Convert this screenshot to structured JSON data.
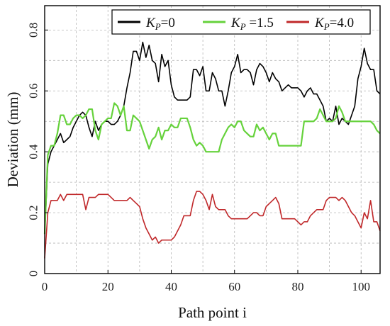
{
  "chart_data": {
    "type": "line",
    "title": "",
    "xlabel": "Path point i",
    "ylabel": "Deviation  (mm)",
    "xlim": [
      0,
      106
    ],
    "ylim": [
      0,
      0.88
    ],
    "xticks": [
      0,
      20,
      40,
      60,
      80,
      100
    ],
    "yticks": [
      0,
      0.2,
      0.4,
      0.6,
      0.8
    ],
    "xtick_labels": [
      "0",
      "20",
      "40",
      "60",
      "80",
      "100"
    ],
    "ytick_labels": [
      "0",
      "0.2",
      "0.4",
      "0.6",
      "0.8"
    ],
    "grid": true,
    "legend": {
      "location": "top-right",
      "entries": [
        {
          "main": "K",
          "sub": "P",
          "rest": "=0"
        },
        {
          "main": "K",
          "sub": "P",
          "rest": " =1.5"
        },
        {
          "main": "K",
          "sub": "P",
          "rest": "=4.0"
        }
      ]
    },
    "series": [
      {
        "name": "KP=0",
        "color": "#000000",
        "points": [
          [
            0,
            0.13
          ],
          [
            1,
            0.36
          ],
          [
            2,
            0.4
          ],
          [
            3,
            0.42
          ],
          [
            4,
            0.44
          ],
          [
            5,
            0.46
          ],
          [
            6,
            0.43
          ],
          [
            7,
            0.44
          ],
          [
            8,
            0.45
          ],
          [
            9,
            0.48
          ],
          [
            10,
            0.5
          ],
          [
            11,
            0.52
          ],
          [
            12,
            0.53
          ],
          [
            13,
            0.52
          ],
          [
            14,
            0.48
          ],
          [
            15,
            0.45
          ],
          [
            16,
            0.5
          ],
          [
            17,
            0.47
          ],
          [
            18,
            0.49
          ],
          [
            19,
            0.5
          ],
          [
            20,
            0.5
          ],
          [
            21,
            0.49
          ],
          [
            22,
            0.49
          ],
          [
            23,
            0.5
          ],
          [
            24,
            0.52
          ],
          [
            25,
            0.55
          ],
          [
            26,
            0.61
          ],
          [
            27,
            0.66
          ],
          [
            28,
            0.73
          ],
          [
            29,
            0.73
          ],
          [
            30,
            0.7
          ],
          [
            31,
            0.76
          ],
          [
            32,
            0.71
          ],
          [
            33,
            0.75
          ],
          [
            34,
            0.7
          ],
          [
            35,
            0.69
          ],
          [
            36,
            0.63
          ],
          [
            37,
            0.72
          ],
          [
            38,
            0.68
          ],
          [
            39,
            0.7
          ],
          [
            40,
            0.62
          ],
          [
            41,
            0.58
          ],
          [
            42,
            0.57
          ],
          [
            43,
            0.57
          ],
          [
            44,
            0.57
          ],
          [
            45,
            0.57
          ],
          [
            46,
            0.58
          ],
          [
            47,
            0.67
          ],
          [
            48,
            0.67
          ],
          [
            49,
            0.65
          ],
          [
            50,
            0.68
          ],
          [
            51,
            0.6
          ],
          [
            52,
            0.6
          ],
          [
            53,
            0.66
          ],
          [
            54,
            0.64
          ],
          [
            55,
            0.6
          ],
          [
            56,
            0.6
          ],
          [
            57,
            0.55
          ],
          [
            58,
            0.6
          ],
          [
            59,
            0.66
          ],
          [
            60,
            0.68
          ],
          [
            61,
            0.72
          ],
          [
            62,
            0.66
          ],
          [
            63,
            0.67
          ],
          [
            64,
            0.67
          ],
          [
            65,
            0.66
          ],
          [
            66,
            0.62
          ],
          [
            67,
            0.67
          ],
          [
            68,
            0.69
          ],
          [
            69,
            0.68
          ],
          [
            70,
            0.66
          ],
          [
            71,
            0.63
          ],
          [
            72,
            0.66
          ],
          [
            73,
            0.64
          ],
          [
            74,
            0.63
          ],
          [
            75,
            0.6
          ],
          [
            76,
            0.61
          ],
          [
            77,
            0.62
          ],
          [
            78,
            0.61
          ],
          [
            79,
            0.61
          ],
          [
            80,
            0.61
          ],
          [
            81,
            0.6
          ],
          [
            82,
            0.58
          ],
          [
            83,
            0.6
          ],
          [
            84,
            0.61
          ],
          [
            85,
            0.59
          ],
          [
            86,
            0.59
          ],
          [
            87,
            0.57
          ],
          [
            88,
            0.55
          ],
          [
            89,
            0.5
          ],
          [
            90,
            0.51
          ],
          [
            91,
            0.5
          ],
          [
            92,
            0.55
          ],
          [
            93,
            0.49
          ],
          [
            94,
            0.51
          ],
          [
            95,
            0.5
          ],
          [
            96,
            0.49
          ],
          [
            97,
            0.52
          ],
          [
            98,
            0.55
          ],
          [
            99,
            0.64
          ],
          [
            100,
            0.68
          ],
          [
            101,
            0.74
          ],
          [
            102,
            0.69
          ],
          [
            103,
            0.67
          ],
          [
            104,
            0.67
          ],
          [
            105,
            0.6
          ],
          [
            106,
            0.59
          ]
        ]
      },
      {
        "name": "KP=1.5",
        "color": "#66d23c",
        "points": [
          [
            0,
            0.13
          ],
          [
            1,
            0.39
          ],
          [
            2,
            0.42
          ],
          [
            3,
            0.42
          ],
          [
            4,
            0.46
          ],
          [
            5,
            0.52
          ],
          [
            6,
            0.52
          ],
          [
            7,
            0.49
          ],
          [
            8,
            0.49
          ],
          [
            9,
            0.51
          ],
          [
            10,
            0.52
          ],
          [
            11,
            0.52
          ],
          [
            12,
            0.51
          ],
          [
            13,
            0.52
          ],
          [
            14,
            0.54
          ],
          [
            15,
            0.54
          ],
          [
            16,
            0.47
          ],
          [
            17,
            0.44
          ],
          [
            18,
            0.49
          ],
          [
            19,
            0.5
          ],
          [
            20,
            0.51
          ],
          [
            21,
            0.51
          ],
          [
            22,
            0.56
          ],
          [
            23,
            0.55
          ],
          [
            24,
            0.52
          ],
          [
            25,
            0.55
          ],
          [
            26,
            0.47
          ],
          [
            27,
            0.47
          ],
          [
            28,
            0.52
          ],
          [
            29,
            0.51
          ],
          [
            30,
            0.5
          ],
          [
            31,
            0.47
          ],
          [
            32,
            0.44
          ],
          [
            33,
            0.41
          ],
          [
            34,
            0.44
          ],
          [
            35,
            0.45
          ],
          [
            36,
            0.48
          ],
          [
            37,
            0.44
          ],
          [
            38,
            0.47
          ],
          [
            39,
            0.47
          ],
          [
            40,
            0.49
          ],
          [
            41,
            0.48
          ],
          [
            42,
            0.48
          ],
          [
            43,
            0.51
          ],
          [
            44,
            0.51
          ],
          [
            45,
            0.51
          ],
          [
            46,
            0.48
          ],
          [
            47,
            0.44
          ],
          [
            48,
            0.42
          ],
          [
            49,
            0.43
          ],
          [
            50,
            0.42
          ],
          [
            51,
            0.4
          ],
          [
            52,
            0.4
          ],
          [
            53,
            0.4
          ],
          [
            54,
            0.4
          ],
          [
            55,
            0.4
          ],
          [
            56,
            0.44
          ],
          [
            57,
            0.46
          ],
          [
            58,
            0.48
          ],
          [
            59,
            0.49
          ],
          [
            60,
            0.48
          ],
          [
            61,
            0.5
          ],
          [
            62,
            0.5
          ],
          [
            63,
            0.47
          ],
          [
            64,
            0.46
          ],
          [
            65,
            0.45
          ],
          [
            66,
            0.45
          ],
          [
            67,
            0.49
          ],
          [
            68,
            0.47
          ],
          [
            69,
            0.48
          ],
          [
            70,
            0.46
          ],
          [
            71,
            0.44
          ],
          [
            72,
            0.46
          ],
          [
            73,
            0.46
          ],
          [
            74,
            0.42
          ],
          [
            75,
            0.42
          ],
          [
            76,
            0.42
          ],
          [
            77,
            0.42
          ],
          [
            78,
            0.42
          ],
          [
            79,
            0.42
          ],
          [
            80,
            0.42
          ],
          [
            81,
            0.42
          ],
          [
            82,
            0.5
          ],
          [
            83,
            0.5
          ],
          [
            84,
            0.5
          ],
          [
            85,
            0.5
          ],
          [
            86,
            0.51
          ],
          [
            87,
            0.54
          ],
          [
            88,
            0.52
          ],
          [
            89,
            0.5
          ],
          [
            90,
            0.5
          ],
          [
            91,
            0.5
          ],
          [
            92,
            0.51
          ],
          [
            93,
            0.55
          ],
          [
            94,
            0.53
          ],
          [
            95,
            0.5
          ],
          [
            96,
            0.5
          ],
          [
            97,
            0.5
          ],
          [
            98,
            0.5
          ],
          [
            99,
            0.5
          ],
          [
            100,
            0.5
          ],
          [
            101,
            0.5
          ],
          [
            102,
            0.5
          ],
          [
            103,
            0.5
          ],
          [
            104,
            0.49
          ],
          [
            105,
            0.47
          ],
          [
            106,
            0.46
          ]
        ]
      },
      {
        "name": "KP=4.0",
        "color": "#c0282a",
        "points": [
          [
            0,
            0.05
          ],
          [
            1,
            0.2
          ],
          [
            2,
            0.24
          ],
          [
            3,
            0.24
          ],
          [
            4,
            0.24
          ],
          [
            5,
            0.26
          ],
          [
            6,
            0.24
          ],
          [
            7,
            0.26
          ],
          [
            8,
            0.26
          ],
          [
            9,
            0.26
          ],
          [
            10,
            0.26
          ],
          [
            11,
            0.26
          ],
          [
            12,
            0.26
          ],
          [
            13,
            0.21
          ],
          [
            14,
            0.25
          ],
          [
            15,
            0.25
          ],
          [
            16,
            0.25
          ],
          [
            17,
            0.26
          ],
          [
            18,
            0.26
          ],
          [
            19,
            0.26
          ],
          [
            20,
            0.26
          ],
          [
            21,
            0.25
          ],
          [
            22,
            0.24
          ],
          [
            23,
            0.24
          ],
          [
            24,
            0.24
          ],
          [
            25,
            0.24
          ],
          [
            26,
            0.24
          ],
          [
            27,
            0.25
          ],
          [
            28,
            0.24
          ],
          [
            29,
            0.23
          ],
          [
            30,
            0.22
          ],
          [
            31,
            0.18
          ],
          [
            32,
            0.15
          ],
          [
            33,
            0.13
          ],
          [
            34,
            0.11
          ],
          [
            35,
            0.12
          ],
          [
            36,
            0.1
          ],
          [
            37,
            0.11
          ],
          [
            38,
            0.11
          ],
          [
            39,
            0.11
          ],
          [
            40,
            0.11
          ],
          [
            41,
            0.12
          ],
          [
            42,
            0.14
          ],
          [
            43,
            0.16
          ],
          [
            44,
            0.19
          ],
          [
            45,
            0.19
          ],
          [
            46,
            0.19
          ],
          [
            47,
            0.24
          ],
          [
            48,
            0.27
          ],
          [
            49,
            0.27
          ],
          [
            50,
            0.26
          ],
          [
            51,
            0.24
          ],
          [
            52,
            0.21
          ],
          [
            53,
            0.26
          ],
          [
            54,
            0.22
          ],
          [
            55,
            0.21
          ],
          [
            56,
            0.21
          ],
          [
            57,
            0.21
          ],
          [
            58,
            0.19
          ],
          [
            59,
            0.18
          ],
          [
            60,
            0.18
          ],
          [
            61,
            0.18
          ],
          [
            62,
            0.18
          ],
          [
            63,
            0.18
          ],
          [
            64,
            0.18
          ],
          [
            65,
            0.19
          ],
          [
            66,
            0.2
          ],
          [
            67,
            0.2
          ],
          [
            68,
            0.19
          ],
          [
            69,
            0.19
          ],
          [
            70,
            0.22
          ],
          [
            71,
            0.23
          ],
          [
            72,
            0.24
          ],
          [
            73,
            0.25
          ],
          [
            74,
            0.23
          ],
          [
            75,
            0.18
          ],
          [
            76,
            0.18
          ],
          [
            77,
            0.18
          ],
          [
            78,
            0.18
          ],
          [
            79,
            0.18
          ],
          [
            80,
            0.17
          ],
          [
            81,
            0.16
          ],
          [
            82,
            0.17
          ],
          [
            83,
            0.17
          ],
          [
            84,
            0.19
          ],
          [
            85,
            0.2
          ],
          [
            86,
            0.21
          ],
          [
            87,
            0.21
          ],
          [
            88,
            0.21
          ],
          [
            89,
            0.24
          ],
          [
            90,
            0.25
          ],
          [
            91,
            0.25
          ],
          [
            92,
            0.25
          ],
          [
            93,
            0.24
          ],
          [
            94,
            0.25
          ],
          [
            95,
            0.24
          ],
          [
            96,
            0.22
          ],
          [
            97,
            0.2
          ],
          [
            98,
            0.19
          ],
          [
            99,
            0.17
          ],
          [
            100,
            0.15
          ],
          [
            101,
            0.2
          ],
          [
            102,
            0.18
          ],
          [
            103,
            0.24
          ],
          [
            104,
            0.17
          ],
          [
            105,
            0.17
          ],
          [
            106,
            0.14
          ]
        ]
      }
    ]
  }
}
